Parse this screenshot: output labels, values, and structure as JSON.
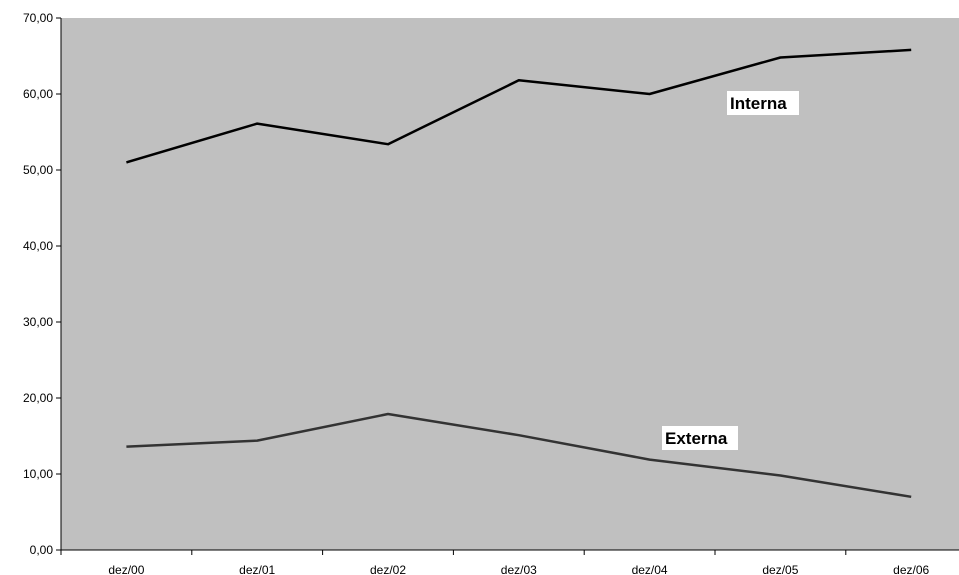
{
  "chart_data": {
    "type": "line",
    "title": "",
    "xlabel": "",
    "ylabel": "",
    "categories": [
      "dez/00",
      "dez/01",
      "dez/02",
      "dez/03",
      "dez/04",
      "dez/05",
      "dez/06"
    ],
    "ylim": [
      0,
      70
    ],
    "y_ticks": [
      "0,00",
      "10,00",
      "20,00",
      "30,00",
      "40,00",
      "50,00",
      "60,00",
      "70,00"
    ],
    "grid": false,
    "plot_background": "#c0c0c0",
    "series": [
      {
        "name": "Interna",
        "color": "#000000",
        "values": [
          51.0,
          56.1,
          53.4,
          61.8,
          60.0,
          64.8,
          65.8
        ]
      },
      {
        "name": "Externa",
        "color": "#333333",
        "values": [
          13.6,
          14.4,
          17.9,
          15.1,
          11.9,
          9.8,
          7.0
        ]
      }
    ]
  }
}
